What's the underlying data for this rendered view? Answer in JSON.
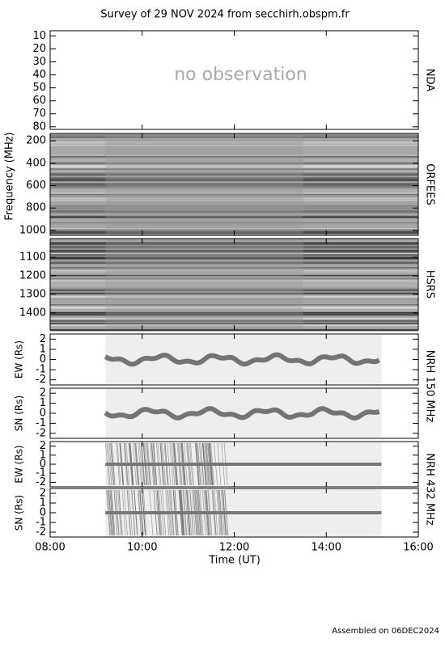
{
  "title": "Survey of 29 NOV 2024 from secchirh.obspm.fr",
  "frequency_label": "Frequency (MHz)",
  "xaxis": {
    "label": "Time (UT)",
    "xlim": [
      8,
      16
    ],
    "xticks": [
      {
        "value": 8,
        "label": "08:00"
      },
      {
        "value": 10,
        "label": "10:00"
      },
      {
        "value": 12,
        "label": "12:00"
      },
      {
        "value": 14,
        "label": "14:00"
      },
      {
        "value": 16,
        "label": "16:00"
      }
    ]
  },
  "panels": [
    {
      "name": "NDA",
      "annotation": "no observation",
      "ylim": [
        82,
        6
      ],
      "yticks": [
        10,
        20,
        30,
        40,
        50,
        60,
        70,
        80
      ]
    },
    {
      "name": "ORFEES",
      "ylim": [
        1044,
        134
      ],
      "yticks": [
        200,
        400,
        600,
        800,
        1000
      ]
    },
    {
      "name": "HSRS",
      "ylim": [
        1492,
        1000
      ],
      "yticks": [
        1100,
        1200,
        1300,
        1400
      ]
    },
    {
      "ylabel": "EW (Rs)",
      "ylim": [
        -2.5,
        2.5
      ],
      "yticks": [
        -2,
        -1,
        0,
        1,
        2
      ]
    },
    {
      "ylabel": "SN (Rs)",
      "ylim": [
        -2.5,
        2.5
      ],
      "yticks": [
        -2,
        -1,
        0,
        1,
        2
      ]
    },
    {
      "ylabel": "EW (Rs)",
      "ylim": [
        -2.5,
        2.5
      ],
      "yticks": [
        -2,
        -1,
        0,
        1,
        2
      ]
    },
    {
      "ylabel": "SN (Rs)",
      "ylim": [
        -2.5,
        2.5
      ],
      "yticks": [
        -2,
        -1,
        0,
        1,
        2
      ]
    }
  ],
  "nrh_groups": [
    {
      "label": "NRH 150 MHz"
    },
    {
      "label": "NRH 432 MHz"
    }
  ],
  "footer": "Assembled on 06DEC2024"
}
